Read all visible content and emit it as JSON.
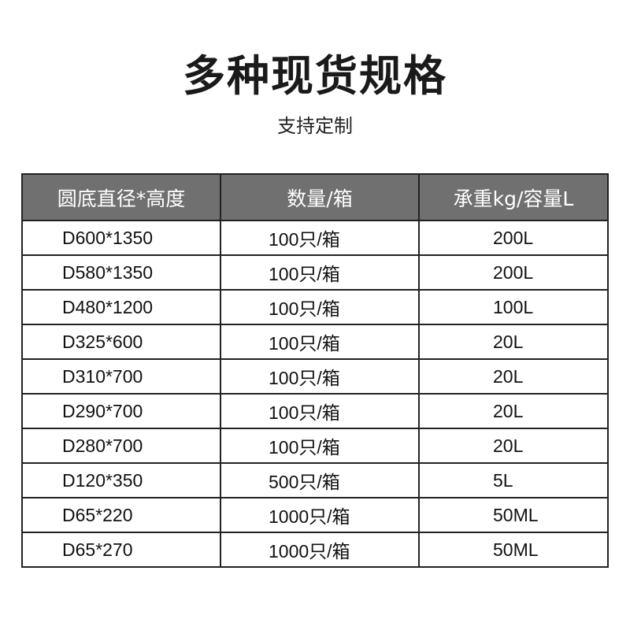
{
  "title": "多种现货规格",
  "subtitle": "支持定制",
  "table": {
    "headers": [
      "圆底直径*高度",
      "数量/箱",
      "承重kg/容量L"
    ],
    "rows": [
      [
        "D600*1350",
        "100只/箱",
        "200L"
      ],
      [
        "D580*1350",
        "100只/箱",
        "200L"
      ],
      [
        "D480*1200",
        "100只/箱",
        "100L"
      ],
      [
        "D325*600",
        "100只/箱",
        "20L"
      ],
      [
        "D310*700",
        "100只/箱",
        "20L"
      ],
      [
        "D290*700",
        "100只/箱",
        "20L"
      ],
      [
        "D280*700",
        "100只/箱",
        "20L"
      ],
      [
        "D120*350",
        "500只/箱",
        "5L"
      ],
      [
        "D65*220",
        "1000只/箱",
        "50ML"
      ],
      [
        "D65*270",
        "1000只/箱",
        "50ML"
      ]
    ]
  },
  "colors": {
    "header_bg": "#707070",
    "border": "#222222"
  }
}
